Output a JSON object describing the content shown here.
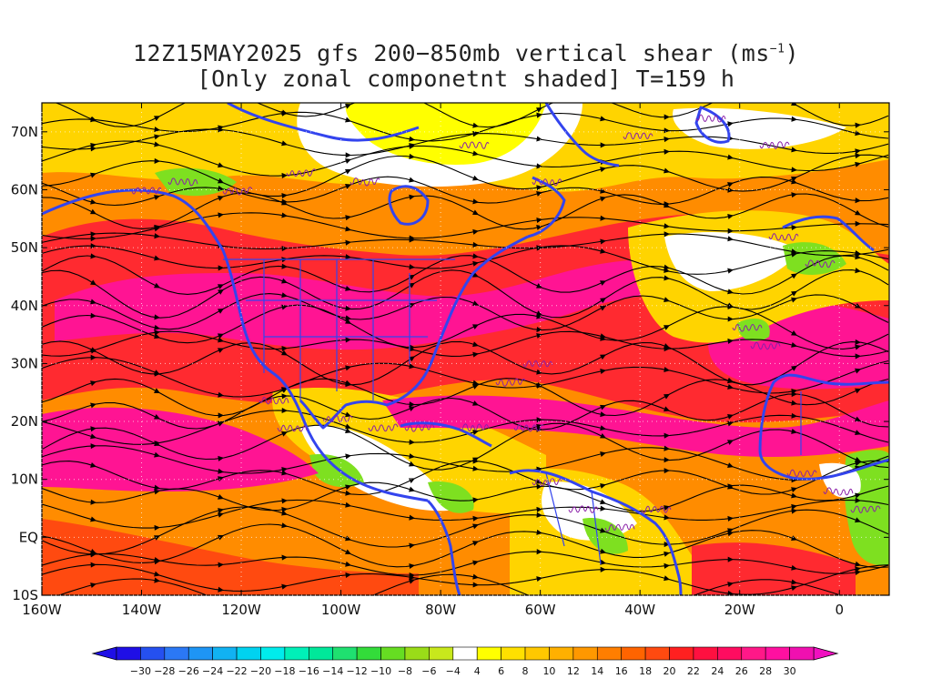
{
  "title": {
    "line1_prefix": "12Z15MAY2025 gfs 200−850mb vertical shear (ms",
    "line1_sup": "−1",
    "line1_suffix": ")",
    "line2": "[Only zonal componetnt shaded] T=159 h"
  },
  "map": {
    "lon_range": [
      -160,
      10
    ],
    "lat_range": [
      -10,
      75
    ],
    "lat_labels": [
      "70N",
      "60N",
      "50N",
      "40N",
      "30N",
      "20N",
      "10N",
      "EQ",
      "10S"
    ],
    "lat_values": [
      70,
      60,
      50,
      40,
      30,
      20,
      10,
      0,
      -10
    ],
    "lon_labels": [
      "160W",
      "140W",
      "120W",
      "100W",
      "80W",
      "60W",
      "40W",
      "20W",
      "0"
    ],
    "lon_values": [
      -160,
      -140,
      -120,
      -100,
      -80,
      -60,
      -40,
      -20,
      0
    ],
    "coastline_color": "#3344ee",
    "streamline_color": "#000000",
    "contour_color": "#8a1fa8"
  },
  "colorbar": {
    "labels": [
      "−30",
      "−28",
      "−26",
      "−24",
      "−22",
      "−20",
      "−18",
      "−16",
      "−14",
      "−12",
      "−10",
      "−8",
      "−6",
      "−4",
      "4",
      "6",
      "8",
      "10",
      "12",
      "14",
      "16",
      "18",
      "20",
      "22",
      "24",
      "26",
      "28",
      "30"
    ],
    "colors": [
      "#1f0fe6",
      "#2550f0",
      "#2b78f5",
      "#1e95f5",
      "#11b2f2",
      "#00d2f0",
      "#00ecec",
      "#00f0b8",
      "#00e89a",
      "#1fe070",
      "#33dc3a",
      "#66dd22",
      "#9adc18",
      "#c8e81c",
      "#ffffff",
      "#ffff00",
      "#ffe000",
      "#ffc800",
      "#ffb000",
      "#ff9800",
      "#ff7e00",
      "#ff6400",
      "#ff4a10",
      "#ff2020",
      "#ff1040",
      "#ff0c60",
      "#ff1888",
      "#ff10a0",
      "#f010b0"
    ],
    "end_low_color": "#1f0fe6",
    "end_high_color": "#f010c0"
  }
}
